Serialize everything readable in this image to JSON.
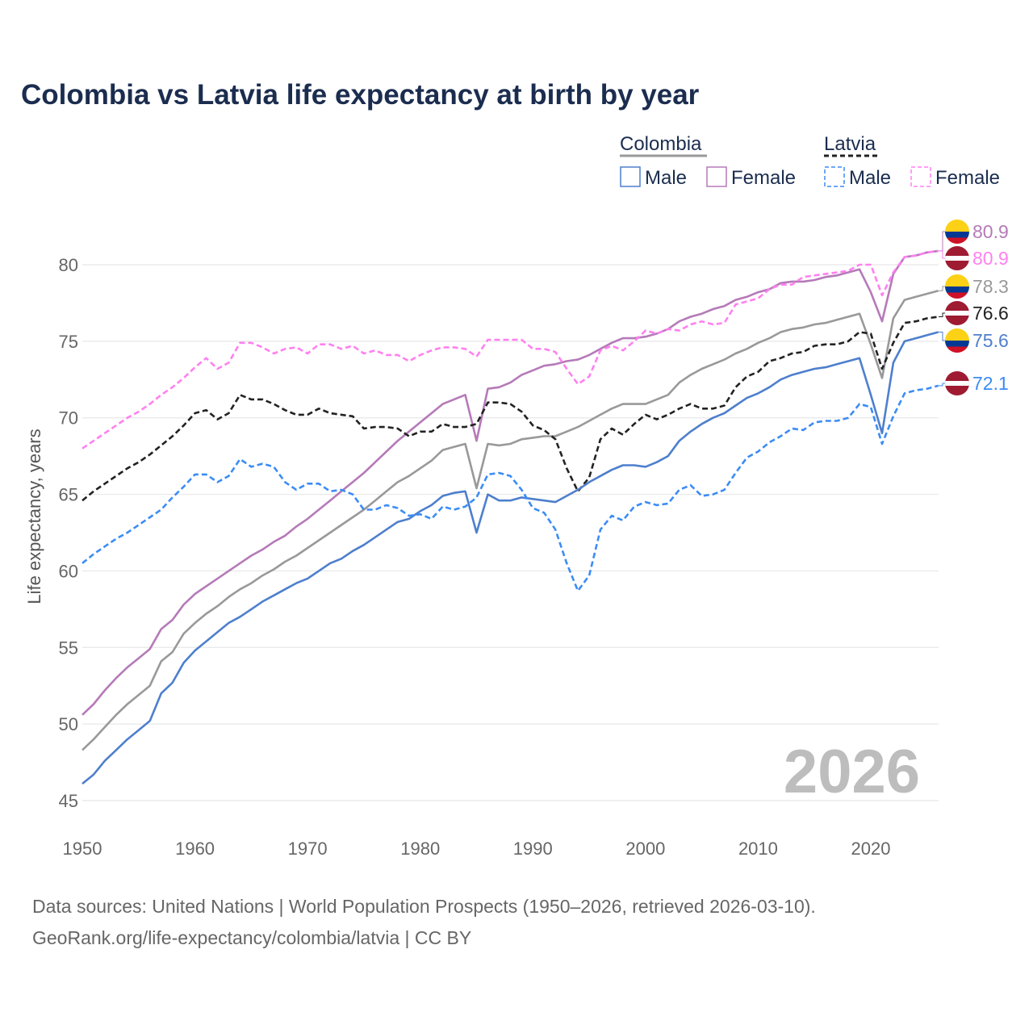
{
  "chart_data": {
    "type": "line",
    "title": "Colombia vs Latvia life expectancy at birth by year",
    "xlabel": "",
    "ylabel": "Life expectancy, years",
    "xlim": [
      1950,
      2026
    ],
    "ylim": [
      44,
      83
    ],
    "x_ticks": [
      "1950",
      "1960",
      "1970",
      "1980",
      "1990",
      "2000",
      "2010",
      "2020"
    ],
    "y_ticks": [
      "45",
      "50",
      "55",
      "60",
      "65",
      "70",
      "75",
      "80"
    ],
    "grid": true,
    "watermark": "2026",
    "legend": {
      "groups": [
        {
          "name": "Colombia",
          "items": [
            "Male",
            "Female"
          ]
        },
        {
          "name": "Latvia",
          "items": [
            "Male",
            "Female"
          ]
        }
      ],
      "placement": "top-right"
    },
    "x_start": 1950,
    "series": [
      {
        "name": "Colombia Female",
        "country": "Colombia",
        "flag": "colombia",
        "color": "#b57ab8",
        "dashed": false,
        "end_label": "80.9",
        "values": [
          50.6,
          51.3,
          52.2,
          53.0,
          53.7,
          54.3,
          54.9,
          56.2,
          56.8,
          57.8,
          58.5,
          59.0,
          59.5,
          60.0,
          60.5,
          61.0,
          61.4,
          61.9,
          62.3,
          62.9,
          63.4,
          64.0,
          64.6,
          65.2,
          65.8,
          66.4,
          67.1,
          67.8,
          68.5,
          69.1,
          69.7,
          70.3,
          70.9,
          71.2,
          71.5,
          68.5,
          71.9,
          72.0,
          72.3,
          72.8,
          73.1,
          73.4,
          73.5,
          73.7,
          73.8,
          74.1,
          74.5,
          74.9,
          75.2,
          75.2,
          75.3,
          75.5,
          75.8,
          76.3,
          76.6,
          76.8,
          77.1,
          77.3,
          77.7,
          77.9,
          78.2,
          78.4,
          78.8,
          78.9,
          78.9,
          79.0,
          79.2,
          79.3,
          79.5,
          79.7,
          78.2,
          76.3,
          79.4,
          80.5,
          80.6,
          80.8,
          80.9
        ]
      },
      {
        "name": "Latvia Female",
        "country": "Latvia",
        "flag": "latvia",
        "color": "#ff80f0",
        "dashed": true,
        "end_label": "80.9",
        "values": [
          68.0,
          68.5,
          69.0,
          69.5,
          70.0,
          70.4,
          70.9,
          71.5,
          72.0,
          72.6,
          73.3,
          73.9,
          73.2,
          73.6,
          74.9,
          74.9,
          74.6,
          74.2,
          74.5,
          74.6,
          74.2,
          74.8,
          74.8,
          74.5,
          74.7,
          74.2,
          74.4,
          74.1,
          74.1,
          73.7,
          74.1,
          74.4,
          74.6,
          74.6,
          74.5,
          74.0,
          75.1,
          75.1,
          75.1,
          75.1,
          74.5,
          74.5,
          74.3,
          73.2,
          72.2,
          72.7,
          74.4,
          74.7,
          74.4,
          75.0,
          75.7,
          75.5,
          75.8,
          75.7,
          76.1,
          76.3,
          76.1,
          76.2,
          77.4,
          77.6,
          77.8,
          78.4,
          78.7,
          78.7,
          79.2,
          79.3,
          79.4,
          79.5,
          79.6,
          80.0,
          80.0,
          78.0,
          79.5,
          80.5,
          80.6,
          80.8,
          80.9
        ]
      },
      {
        "name": "Colombia",
        "country": "Colombia",
        "flag": "colombia",
        "color": "#999999",
        "dashed": false,
        "end_label": "78.3",
        "values": [
          48.3,
          49.0,
          49.8,
          50.6,
          51.3,
          51.9,
          52.5,
          54.1,
          54.7,
          55.9,
          56.6,
          57.2,
          57.7,
          58.3,
          58.8,
          59.2,
          59.7,
          60.1,
          60.6,
          61.0,
          61.5,
          62.0,
          62.5,
          63.0,
          63.5,
          64.0,
          64.6,
          65.2,
          65.8,
          66.2,
          66.7,
          67.2,
          67.9,
          68.1,
          68.3,
          65.4,
          68.3,
          68.2,
          68.3,
          68.6,
          68.7,
          68.8,
          68.8,
          69.1,
          69.4,
          69.8,
          70.2,
          70.6,
          70.9,
          70.9,
          70.9,
          71.2,
          71.5,
          72.3,
          72.8,
          73.2,
          73.5,
          73.8,
          74.2,
          74.5,
          74.9,
          75.2,
          75.6,
          75.8,
          75.9,
          76.1,
          76.2,
          76.4,
          76.6,
          76.8,
          74.8,
          72.6,
          76.5,
          77.7,
          77.9,
          78.1,
          78.3
        ]
      },
      {
        "name": "Latvia",
        "country": "Latvia",
        "flag": "latvia",
        "color": "#222222",
        "dashed": true,
        "end_label": "76.6",
        "values": [
          64.6,
          65.2,
          65.7,
          66.2,
          66.7,
          67.1,
          67.6,
          68.2,
          68.8,
          69.5,
          70.3,
          70.5,
          69.9,
          70.3,
          71.5,
          71.2,
          71.2,
          70.9,
          70.5,
          70.2,
          70.2,
          70.6,
          70.3,
          70.2,
          70.1,
          69.3,
          69.4,
          69.4,
          69.3,
          68.8,
          69.1,
          69.1,
          69.6,
          69.4,
          69.4,
          69.6,
          71.0,
          71.0,
          70.9,
          70.4,
          69.5,
          69.2,
          68.6,
          66.7,
          65.2,
          66.1,
          68.6,
          69.3,
          68.9,
          69.6,
          70.2,
          69.9,
          70.2,
          70.6,
          70.9,
          70.6,
          70.6,
          70.8,
          72.0,
          72.7,
          73.0,
          73.7,
          73.9,
          74.2,
          74.3,
          74.7,
          74.8,
          74.8,
          75.0,
          75.6,
          75.5,
          73.2,
          74.9,
          76.2,
          76.3,
          76.5,
          76.6
        ]
      },
      {
        "name": "Colombia Male",
        "country": "Colombia",
        "flag": "colombia",
        "color": "#4e7fcd",
        "dashed": false,
        "end_label": "75.6",
        "values": [
          46.1,
          46.7,
          47.6,
          48.3,
          49.0,
          49.6,
          50.2,
          52.0,
          52.7,
          54.0,
          54.8,
          55.4,
          56.0,
          56.6,
          57.0,
          57.5,
          58.0,
          58.4,
          58.8,
          59.2,
          59.5,
          60.0,
          60.5,
          60.8,
          61.3,
          61.7,
          62.2,
          62.7,
          63.2,
          63.4,
          63.9,
          64.3,
          64.9,
          65.1,
          65.2,
          62.5,
          65.0,
          64.6,
          64.6,
          64.8,
          64.7,
          64.6,
          64.5,
          64.9,
          65.3,
          65.8,
          66.2,
          66.6,
          66.9,
          66.9,
          66.8,
          67.1,
          67.5,
          68.5,
          69.1,
          69.6,
          70.0,
          70.3,
          70.8,
          71.3,
          71.6,
          72.0,
          72.5,
          72.8,
          73.0,
          73.2,
          73.3,
          73.5,
          73.7,
          73.9,
          71.5,
          69.0,
          73.6,
          75.0,
          75.2,
          75.4,
          75.6
        ]
      },
      {
        "name": "Latvia Male",
        "country": "Latvia",
        "flag": "latvia",
        "color": "#3b8cf5",
        "dashed": true,
        "end_label": "72.1",
        "values": [
          60.5,
          61.1,
          61.6,
          62.1,
          62.5,
          63.0,
          63.5,
          64.0,
          64.8,
          65.5,
          66.3,
          66.3,
          65.8,
          66.2,
          67.3,
          66.8,
          67.0,
          66.8,
          65.8,
          65.3,
          65.7,
          65.7,
          65.2,
          65.3,
          65.0,
          64.0,
          64.0,
          64.3,
          64.1,
          63.6,
          63.7,
          63.4,
          64.2,
          64.0,
          64.2,
          64.8,
          66.3,
          66.4,
          66.2,
          65.3,
          64.1,
          63.8,
          62.7,
          60.5,
          58.7,
          59.7,
          62.7,
          63.6,
          63.3,
          64.2,
          64.5,
          64.3,
          64.4,
          65.3,
          65.6,
          64.9,
          65.0,
          65.3,
          66.4,
          67.4,
          67.8,
          68.4,
          68.8,
          69.3,
          69.2,
          69.7,
          69.8,
          69.8,
          70.0,
          70.9,
          70.7,
          68.3,
          70.1,
          71.6,
          71.8,
          71.9,
          72.1
        ]
      }
    ]
  },
  "footer": {
    "line1": "Data sources: United Nations | World Population Prospects (1950–2026, retrieved 2026-03-10).",
    "line2": "GeoRank.org/life-expectancy/colombia/latvia | CC BY"
  }
}
